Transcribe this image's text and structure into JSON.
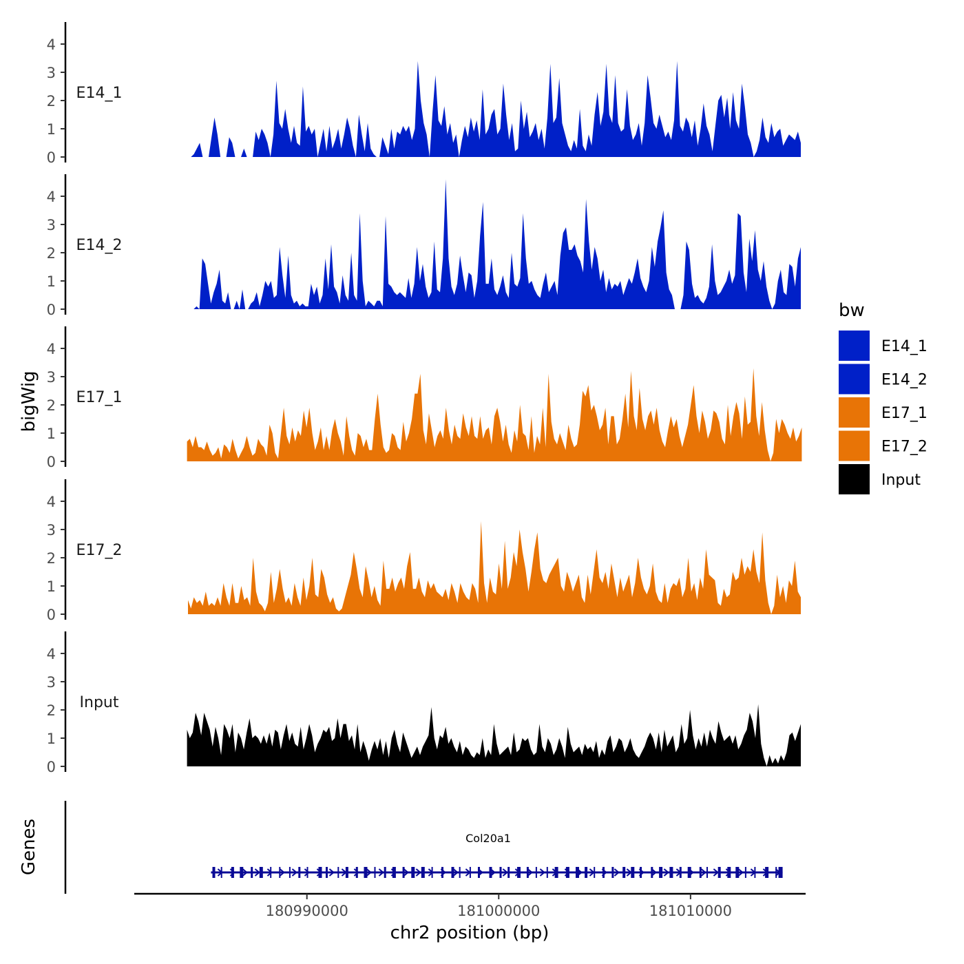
{
  "chart_data": {
    "type": "area",
    "chromosome": "chr2",
    "y_axis_title": "bigWig",
    "x_axis_title": "chr2 position (bp)",
    "x_ticks": [
      "180990000",
      "181000000",
      "181010000"
    ],
    "x_tick_values": [
      180990000,
      181000000,
      181010000
    ],
    "x_range": [
      180981000,
      181016000
    ],
    "ylim": [
      0,
      4.8
    ],
    "y_ticks": [
      "0",
      "1",
      "2",
      "3",
      "4"
    ],
    "legend": {
      "title": "bw",
      "position": "right",
      "entries": [
        {
          "label": "E14_1",
          "color": "#0020C8"
        },
        {
          "label": "E14_2",
          "color": "#0020C8"
        },
        {
          "label": "E17_1",
          "color": "#E87406"
        },
        {
          "label": "E17_2",
          "color": "#E87406"
        },
        {
          "label": "Input",
          "color": "#000000"
        }
      ]
    },
    "tracks": [
      {
        "name": "E14_1",
        "color": "#0020C8",
        "start": 180983800,
        "end": 181015750,
        "values": [
          0,
          0,
          0.1,
          0.3,
          0.5,
          0,
          0,
          0,
          0.7,
          1.4,
          0.8,
          0,
          0,
          0,
          0.7,
          0.5,
          0,
          0,
          0,
          0.3,
          0,
          0,
          0,
          0.9,
          0.6,
          1.0,
          0.8,
          0.5,
          0,
          0.8,
          2.7,
          1.2,
          1.0,
          1.7,
          1.0,
          0.5,
          1.1,
          0.5,
          0.4,
          2.5,
          0.9,
          1.1,
          0.8,
          1.0,
          0,
          0.5,
          1.0,
          0.2,
          1.1,
          0.3,
          0.6,
          1.0,
          0.3,
          0.8,
          1.4,
          1.0,
          0.4,
          0,
          1.5,
          0.8,
          0.2,
          1.2,
          0.3,
          0.1,
          0,
          0,
          0.7,
          0.4,
          0.1,
          1.0,
          0.3,
          0.9,
          0.8,
          1.1,
          0.9,
          1.1,
          0.6,
          1.0,
          3.4,
          2.0,
          1.2,
          0.8,
          0,
          1.6,
          2.9,
          1.3,
          1.1,
          1.8,
          0.8,
          1.2,
          0.5,
          0.8,
          0,
          0.6,
          1.1,
          0.7,
          1.4,
          0.9,
          1.3,
          0.6,
          2.4,
          0.8,
          1.0,
          1.5,
          1.7,
          0.8,
          1.0,
          2.6,
          1.5,
          0.6,
          1.2,
          0.2,
          0.3,
          2.0,
          1.0,
          1.6,
          0.7,
          0.9,
          1.2,
          0.6,
          1.0,
          0.3,
          1.4,
          3.3,
          1.2,
          1.4,
          2.8,
          1.2,
          0.8,
          0.4,
          0.2,
          0.6,
          0.3,
          1.7,
          0.4,
          0.2,
          0.8,
          0.4,
          1.5,
          2.3,
          1.1,
          1.6,
          3.3,
          1.5,
          1.2,
          2.9,
          1.2,
          0.9,
          1.0,
          2.4,
          1.1,
          0.6,
          0.8,
          1.2,
          0.4,
          1.2,
          2.9,
          2.1,
          1.2,
          1.0,
          1.5,
          1.1,
          0.7,
          0.9,
          0.6,
          1.3,
          3.4,
          1.1,
          0.9,
          1.4,
          1.2,
          0.7,
          1.3,
          0.4,
          1.0,
          1.9,
          1.1,
          0.8,
          0.2,
          1.1,
          2.0,
          2.2,
          1.4,
          2.1,
          1.0,
          2.3,
          1.3,
          1.0,
          2.6,
          1.8,
          0.8,
          0.5,
          0,
          0.2,
          0.6,
          1.4,
          0.7,
          0.5,
          1.2,
          0.7,
          0.9,
          1.0,
          0.4,
          0.6,
          0.8,
          0.7,
          0.6,
          0.9,
          0.5
        ]
      },
      {
        "name": "E14_2",
        "color": "#0020C8",
        "start": 180983800,
        "end": 181015750,
        "values": [
          0,
          0,
          0,
          0.1,
          0,
          1.8,
          1.6,
          0.9,
          0.2,
          0.6,
          0.9,
          1.4,
          0.3,
          0.2,
          0.6,
          0,
          0,
          0.3,
          0,
          0.7,
          0,
          0,
          0.2,
          0.3,
          0.6,
          0.1,
          0.5,
          1.0,
          0.8,
          1.0,
          0.4,
          0.5,
          2.2,
          1.2,
          0.4,
          1.9,
          0.5,
          0.2,
          0.3,
          0.1,
          0.2,
          0.1,
          0.1,
          0.9,
          0.5,
          0.8,
          0.2,
          0.5,
          1.8,
          0.7,
          2.3,
          0.8,
          0.6,
          0.2,
          1.2,
          0.5,
          0.3,
          2.0,
          0.5,
          0.3,
          3.4,
          1.0,
          0.1,
          0.3,
          0.2,
          0.1,
          0.3,
          0.3,
          0.1,
          3.3,
          0.9,
          0.8,
          0.6,
          0.5,
          0.6,
          0.5,
          0.4,
          1.1,
          0.4,
          0.9,
          2.2,
          1.0,
          1.6,
          0.8,
          0.4,
          0.6,
          2.4,
          0.7,
          0.6,
          1.8,
          4.6,
          1.8,
          0.8,
          0.5,
          0.9,
          1.9,
          1.2,
          0.6,
          1.3,
          1.2,
          0.4,
          1.0,
          2.6,
          3.8,
          0.9,
          0.9,
          1.8,
          0.7,
          0.5,
          0.8,
          1.2,
          0.6,
          0.4,
          2.0,
          0.9,
          0.8,
          1.1,
          3.4,
          1.8,
          0.9,
          1.0,
          0.7,
          0.5,
          0.4,
          0.9,
          1.3,
          0.6,
          0.8,
          1.0,
          0.5,
          1.9,
          2.7,
          2.9,
          2.1,
          2.1,
          2.3,
          1.9,
          1.7,
          1.3,
          3.9,
          2.4,
          1.4,
          2.2,
          1.8,
          1.0,
          1.4,
          0.6,
          1.1,
          0.7,
          0.9,
          0.8,
          1.0,
          0.5,
          0.8,
          1.1,
          0.9,
          1.3,
          1.8,
          1.1,
          0.8,
          0.6,
          1.0,
          2.2,
          1.5,
          2.4,
          2.9,
          3.5,
          1.3,
          0.7,
          0.5,
          0,
          0,
          0,
          0.5,
          2.4,
          2.1,
          0.9,
          0.4,
          0.5,
          0.3,
          0.2,
          0.4,
          0.8,
          2.3,
          1.0,
          0.5,
          0.6,
          0.8,
          1.0,
          1.4,
          0.9,
          1.2,
          3.4,
          3.3,
          1.3,
          0.6,
          2.5,
          1.7,
          2.8,
          1.4,
          1.0,
          1.7,
          0.8,
          0.3,
          0,
          0.2,
          1.0,
          1.4,
          0.6,
          0.5,
          1.6,
          1.5,
          0.8,
          1.8,
          2.2
        ]
      },
      {
        "name": "E17_1",
        "color": "#E87406",
        "start": 180983750,
        "end": 181015800,
        "values": [
          0.7,
          0.8,
          0.5,
          0.9,
          0.5,
          0.5,
          0.4,
          0.7,
          0.4,
          0.2,
          0.3,
          0.5,
          0.1,
          0.6,
          0.5,
          0.3,
          0.8,
          0.4,
          0.1,
          0.3,
          0.5,
          0.9,
          0.5,
          0.2,
          0.3,
          0.8,
          0.6,
          0.5,
          0.2,
          1.3,
          1.0,
          0.3,
          0.1,
          1.0,
          1.9,
          0.9,
          0.6,
          1.2,
          0.7,
          1.1,
          0.9,
          1.8,
          1.2,
          1.9,
          1.0,
          0.4,
          0.7,
          1.2,
          0.4,
          0.9,
          0.4,
          1.1,
          1.5,
          1.0,
          0.7,
          0.2,
          1.6,
          0.9,
          0.4,
          0.2,
          1.0,
          0.9,
          0.5,
          0.8,
          0.4,
          0.4,
          1.5,
          2.4,
          1.3,
          0.5,
          0.3,
          0.4,
          1.0,
          0.9,
          0.5,
          0.4,
          1.4,
          0.7,
          1.0,
          1.5,
          2.4,
          2.4,
          3.1,
          1.1,
          0.6,
          1.7,
          1.1,
          0.5,
          0.9,
          1.1,
          0.8,
          1.9,
          1.1,
          0.6,
          1.3,
          0.9,
          0.8,
          1.7,
          1.2,
          0.9,
          1.6,
          0.9,
          0.8,
          1.6,
          0.8,
          1.1,
          1.2,
          0.6,
          1.6,
          1.9,
          1.4,
          0.7,
          1.3,
          0.6,
          0.3,
          1.1,
          0.7,
          2.0,
          1.0,
          0.9,
          0.4,
          1.6,
          0.3,
          0.9,
          0.6,
          1.9,
          0.5,
          3.1,
          1.4,
          0.8,
          0.6,
          1.0,
          0.7,
          0.4,
          1.3,
          0.8,
          0.5,
          0.6,
          1.3,
          2.5,
          2.3,
          2.7,
          1.8,
          2.0,
          1.6,
          1.1,
          1.3,
          1.9,
          0.6,
          1.6,
          1.6,
          0.6,
          0.8,
          1.5,
          2.4,
          1.2,
          3.2,
          1.6,
          1.1,
          2.6,
          1.5,
          1.1,
          1.6,
          1.8,
          1.3,
          1.9,
          1.1,
          0.7,
          0.5,
          1.1,
          1.6,
          1.2,
          1.5,
          0.9,
          0.5,
          0.9,
          1.3,
          2.0,
          2.7,
          1.6,
          1.0,
          1.8,
          1.4,
          0.8,
          1.1,
          1.8,
          1.7,
          1.4,
          0.8,
          0.6,
          2.0,
          0.9,
          1.6,
          2.1,
          1.7,
          0.8,
          2.3,
          1.3,
          1.4,
          3.3,
          1.6,
          0.9,
          2.1,
          1.1,
          0.4,
          0,
          0.3,
          1.5,
          1.0,
          1.5,
          1.3,
          1.0,
          0.8,
          1.2,
          0.7,
          0.9,
          1.2
        ]
      },
      {
        "name": "E17_2",
        "color": "#E87406",
        "start": 180983800,
        "end": 181015750,
        "values": [
          0.5,
          0.2,
          0.6,
          0.4,
          0.5,
          0.3,
          0.8,
          0.3,
          0.4,
          0.3,
          0.6,
          0.3,
          1.1,
          0.6,
          0.3,
          1.1,
          0.4,
          0.4,
          1.0,
          0.5,
          0.6,
          0.3,
          2.0,
          0.8,
          0.4,
          0.3,
          0.1,
          0.4,
          1.5,
          0.4,
          0.9,
          1.6,
          0.9,
          0.4,
          0.6,
          0.3,
          1.1,
          0.6,
          0.3,
          1.3,
          0.5,
          1.0,
          2.0,
          0.7,
          0.6,
          1.6,
          1.3,
          0.7,
          0.4,
          0.6,
          0.2,
          0.1,
          0.2,
          0.6,
          1.0,
          1.4,
          2.2,
          1.6,
          0.9,
          0.6,
          1.7,
          1.2,
          0.6,
          1.0,
          0.5,
          0.3,
          1.9,
          0.9,
          0.9,
          1.3,
          0.8,
          1.1,
          1.3,
          0.9,
          1.7,
          2.2,
          0.9,
          0.9,
          1.3,
          0.8,
          0.6,
          1.2,
          0.9,
          1.1,
          0.8,
          0.7,
          0.6,
          0.9,
          0.5,
          1.1,
          0.8,
          0.4,
          1.1,
          0.8,
          0.6,
          0.5,
          1.1,
          0.9,
          0.4,
          3.3,
          1.1,
          0.4,
          1.3,
          0.8,
          0.7,
          1.8,
          0.9,
          2.6,
          0.9,
          1.3,
          2.2,
          1.7,
          3.0,
          2.2,
          1.6,
          0.8,
          1.5,
          2.3,
          2.9,
          1.6,
          1.2,
          1.1,
          1.4,
          1.6,
          1.8,
          2.0,
          1.0,
          0.8,
          1.5,
          1.2,
          0.8,
          1.1,
          1.4,
          0.6,
          0.4,
          1.4,
          0.7,
          1.5,
          2.3,
          1.3,
          1.1,
          1.5,
          0.9,
          1.8,
          1.2,
          0.6,
          1.3,
          0.8,
          1.1,
          1.4,
          0.6,
          1.1,
          2.0,
          1.3,
          0.9,
          0.7,
          1.0,
          1.8,
          0.8,
          0.5,
          0.4,
          1.1,
          0.4,
          0.9,
          1.1,
          1.0,
          1.3,
          0.6,
          0.9,
          2.0,
          0.8,
          1.1,
          0.5,
          1.3,
          0.9,
          2.3,
          1.4,
          1.3,
          1.2,
          0.4,
          0.3,
          0.9,
          0.6,
          0.7,
          1.5,
          1.2,
          1.3,
          2.0,
          1.4,
          1.7,
          1.5,
          2.3,
          1.5,
          1.1,
          2.9,
          1.2,
          0.4,
          0,
          0.3,
          1.4,
          0.6,
          1.0,
          0.4,
          1.2,
          1.0,
          1.9,
          0.8,
          0.6
        ]
      },
      {
        "name": "Input",
        "color": "#000000",
        "start": 180983750,
        "end": 181015750,
        "values": [
          1.3,
          1.0,
          1.2,
          1.9,
          1.6,
          1.1,
          1.9,
          1.6,
          1.3,
          0.7,
          1.4,
          1.0,
          0.4,
          1.5,
          1.3,
          1.0,
          1.5,
          0.5,
          1.2,
          1.0,
          0.6,
          1.2,
          1.7,
          1.0,
          1.1,
          1.0,
          0.8,
          1.1,
          0.8,
          1.2,
          0.7,
          1.3,
          1.2,
          0.6,
          1.1,
          1.5,
          0.9,
          1.2,
          0.8,
          0.7,
          1.4,
          0.6,
          1.0,
          1.5,
          1.1,
          0.5,
          0.8,
          1.0,
          1.3,
          1.2,
          1.4,
          0.9,
          1.0,
          1.7,
          1.0,
          1.5,
          1.5,
          0.9,
          1.1,
          0.6,
          1.5,
          0.5,
          0.9,
          0.6,
          0.2,
          0.6,
          0.9,
          0.6,
          1.0,
          0.4,
          0.9,
          0.3,
          1.0,
          1.3,
          0.8,
          0.5,
          1.2,
          0.9,
          0.6,
          0.3,
          0.5,
          0.7,
          0.4,
          0.7,
          0.9,
          1.1,
          2.1,
          1.0,
          0.6,
          1.1,
          1.0,
          1.4,
          0.8,
          1.0,
          0.7,
          0.5,
          0.9,
          0.4,
          0.7,
          0.6,
          0.4,
          0.3,
          0.5,
          0.4,
          1.0,
          0.3,
          0.6,
          0.4,
          1.5,
          0.8,
          0.4,
          0.5,
          0.6,
          0.7,
          0.4,
          1.2,
          0.5,
          0.6,
          1.0,
          0.9,
          1.0,
          0.6,
          0.4,
          0.5,
          1.5,
          0.7,
          0.5,
          1.0,
          0.8,
          0.4,
          0.6,
          1.0,
          0.7,
          0.3,
          1.4,
          0.8,
          0.5,
          0.6,
          0.7,
          0.4,
          0.8,
          0.6,
          0.7,
          0.5,
          0.9,
          0.3,
          0.6,
          0.4,
          0.9,
          1.1,
          0.5,
          0.7,
          1.0,
          0.9,
          0.5,
          0.7,
          1.0,
          0.6,
          0.4,
          0.3,
          0.5,
          0.7,
          1.0,
          1.2,
          1.0,
          0.6,
          1.2,
          0.5,
          1.3,
          0.7,
          0.9,
          1.1,
          0.5,
          0.7,
          1.5,
          0.8,
          1.0,
          2.0,
          1.1,
          0.6,
          1.0,
          0.7,
          1.2,
          0.7,
          1.3,
          1.0,
          0.8,
          1.6,
          1.2,
          0.9,
          1.0,
          1.1,
          0.8,
          1.1,
          0.6,
          0.8,
          1.1,
          1.3,
          1.9,
          1.6,
          1.0,
          2.2,
          0.8,
          0.3,
          0,
          0.4,
          0.1,
          0.3,
          0.1,
          0.4,
          0.2,
          0.5,
          1.1,
          1.2,
          0.9,
          1.2,
          1.5
        ]
      }
    ],
    "genes_track": {
      "label": "Genes",
      "gene_name": "Col20a1",
      "start": 180985000,
      "end": 181014800,
      "strand": "+",
      "color": "#0A0A96",
      "exon_count": 60
    }
  }
}
